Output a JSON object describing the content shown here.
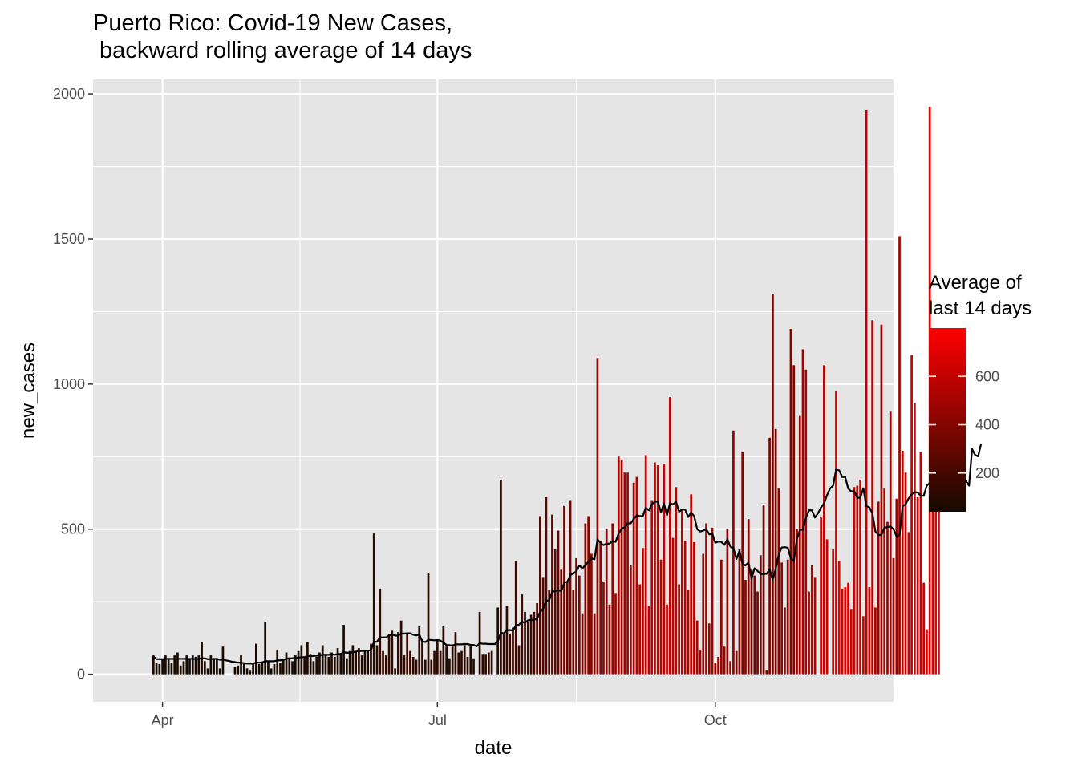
{
  "chart_data": {
    "type": "bar",
    "title_line1": "Puerto Rico: Covid-19 New Cases,",
    "title_line2": " backward rolling average of 14 days",
    "xlabel": "date",
    "ylabel": "new_cases",
    "x_ticks": [
      {
        "label": "Apr",
        "date": "2020-04-01"
      },
      {
        "label": "Jul",
        "date": "2020-07-01"
      },
      {
        "label": "Oct",
        "date": "2020-10-01"
      }
    ],
    "x_range": [
      "2020-03-09",
      "2020-11-29"
    ],
    "y_ticks": [
      0,
      500,
      1000,
      1500,
      2000
    ],
    "ylim": [
      -95,
      2050
    ],
    "grid": true,
    "background": "#E5E5E5",
    "gridline_color": "#FFFFFF",
    "line_color": "#000000",
    "legend": {
      "title_line1": "Average of",
      "title_line2": "last 14 days",
      "ticks": [
        200,
        400,
        600
      ],
      "low": 40,
      "high": 800,
      "low_color": "#140A00",
      "high_color": "#FF0000",
      "placement": "right"
    },
    "start_date": "2020-03-29",
    "new_cases": [
      65,
      40,
      35,
      50,
      65,
      50,
      40,
      65,
      75,
      30,
      45,
      65,
      50,
      65,
      60,
      65,
      110,
      45,
      20,
      65,
      55,
      50,
      20,
      95,
      0,
      0,
      0,
      25,
      30,
      65,
      35,
      20,
      15,
      40,
      105,
      35,
      40,
      180,
      45,
      20,
      35,
      85,
      40,
      50,
      75,
      55,
      45,
      65,
      80,
      100,
      60,
      110,
      70,
      45,
      60,
      75,
      100,
      65,
      60,
      75,
      60,
      90,
      70,
      170,
      55,
      80,
      100,
      80,
      90,
      65,
      80,
      80,
      105,
      485,
      100,
      295,
      80,
      65,
      140,
      150,
      20,
      145,
      185,
      65,
      140,
      80,
      60,
      50,
      165,
      120,
      50,
      350,
      50,
      80,
      120,
      80,
      165,
      95,
      55,
      95,
      145,
      75,
      80,
      100,
      60,
      100,
      55,
      0,
      215,
      70,
      70,
      75,
      80,
      0,
      230,
      670,
      140,
      235,
      140,
      160,
      390,
      100,
      275,
      215,
      180,
      205,
      215,
      245,
      545,
      335,
      610,
      290,
      550,
      430,
      495,
      360,
      580,
      320,
      600,
      290,
      400,
      340,
      210,
      520,
      545,
      415,
      210,
      1090,
      460,
      320,
      500,
      240,
      520,
      280,
      750,
      740,
      695,
      695,
      375,
      660,
      680,
      310,
      435,
      755,
      235,
      600,
      730,
      720,
      395,
      725,
      240,
      955,
      470,
      645,
      310,
      565,
      460,
      290,
      620,
      455,
      185,
      85,
      415,
      520,
      175,
      505,
      40,
      60,
      395,
      95,
      500,
      45,
      840,
      80,
      430,
      765,
      325,
      535,
      360,
      340,
      285,
      410,
      585,
      15,
      815,
      1310,
      845,
      640,
      385,
      230,
      395,
      1190,
      1065,
      500,
      890,
      1120,
      1050,
      285,
      375,
      335,
      0,
      540,
      1065,
      465,
      0,
      430,
      975,
      390,
      295,
      300,
      315,
      225,
      645,
      650,
      670,
      200,
      1945,
      300,
      1220,
      230,
      595,
      1205,
      640,
      525,
      905,
      400,
      605,
      1510,
      770,
      695,
      490,
      1100,
      935,
      610,
      765,
      315,
      155,
      1955,
      810,
      915,
      1115
    ],
    "rolling_avg": [
      60,
      52,
      52,
      52,
      53,
      53,
      53,
      53,
      53,
      53,
      53,
      53,
      53,
      53,
      52,
      53,
      55,
      55,
      52,
      52,
      53,
      53,
      50,
      51,
      48,
      46,
      43,
      42,
      40,
      40,
      38,
      37,
      37,
      37,
      40,
      40,
      41,
      45,
      45,
      45,
      45,
      48,
      48,
      49,
      54,
      55,
      55,
      57,
      57,
      59,
      59,
      63,
      63,
      63,
      64,
      65,
      67,
      67,
      67,
      69,
      67,
      70,
      70,
      76,
      74,
      74,
      76,
      78,
      80,
      80,
      81,
      81,
      83,
      112,
      112,
      127,
      127,
      127,
      133,
      138,
      133,
      133,
      140,
      140,
      141,
      141,
      136,
      134,
      137,
      113,
      111,
      119,
      118,
      117,
      118,
      116,
      109,
      101,
      100,
      99,
      103,
      103,
      103,
      104,
      104,
      101,
      101,
      96,
      107,
      105,
      105,
      104,
      104,
      104,
      113,
      142,
      141,
      152,
      152,
      151,
      168,
      171,
      180,
      178,
      186,
      187,
      188,
      191,
      215,
      225,
      253,
      255,
      285,
      286,
      290,
      286,
      316,
      318,
      342,
      347,
      355,
      375,
      365,
      376,
      387,
      400,
      396,
      465,
      452,
      445,
      450,
      450,
      460,
      456,
      485,
      502,
      506,
      520,
      520,
      535,
      548,
      545,
      545,
      574,
      565,
      586,
      595,
      595,
      558,
      588,
      548,
      590,
      585,
      595,
      560,
      568,
      568,
      542,
      557,
      545,
      500,
      492,
      495,
      500,
      482,
      485,
      453,
      457,
      456,
      446,
      465,
      440,
      435,
      397,
      425,
      380,
      375,
      385,
      330,
      365,
      356,
      345,
      345,
      346,
      362,
      326,
      363,
      413,
      437,
      438,
      436,
      400,
      390,
      465,
      497,
      499,
      539,
      565,
      565,
      540,
      555,
      575,
      588,
      618,
      640,
      650,
      705,
      703,
      680,
      680,
      640,
      630,
      631,
      608,
      608,
      641,
      580,
      575,
      555,
      492,
      480,
      480,
      505,
      507,
      510,
      500,
      475,
      480,
      579,
      586,
      606,
      620,
      628,
      626,
      615,
      615,
      650,
      660,
      655,
      730,
      733,
      690,
      703,
      724,
      769,
      690,
      705,
      695,
      675,
      665,
      650,
      776,
      756,
      751,
      795
    ]
  }
}
